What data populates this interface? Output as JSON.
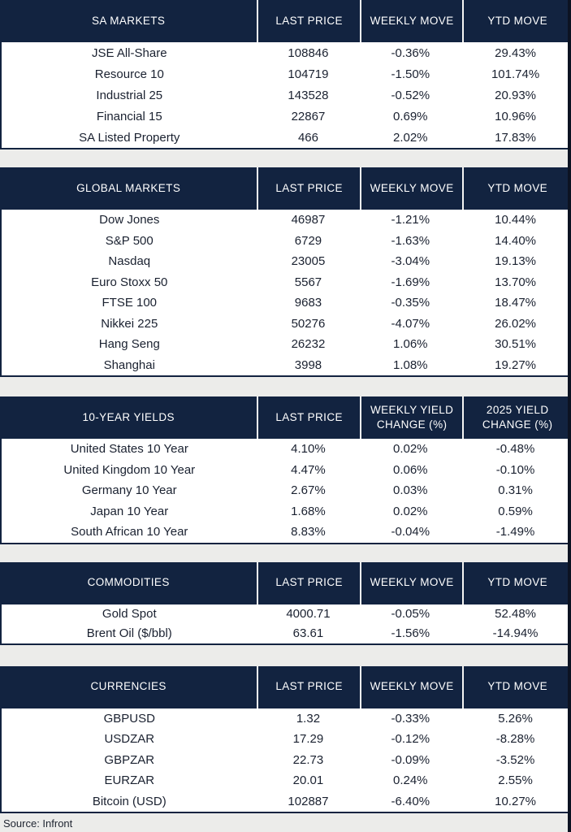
{
  "page": {
    "source_note": "Source: Infront"
  },
  "colors": {
    "header_bg": "#122340",
    "header_text": "#ffffff",
    "page_bg": "#ececea",
    "body_bg": "#ffffff",
    "body_text": "#1a2130",
    "border": "#122340",
    "edge_band": "#0c1322"
  },
  "chart_data": [
    {
      "type": "table",
      "name": "sa-markets",
      "title": "SA MARKETS",
      "columns": [
        "SA MARKETS",
        "LAST PRICE",
        "WEEKLY MOVE",
        "YTD MOVE"
      ],
      "rows": [
        [
          "JSE All-Share",
          "108846",
          "-0.36%",
          "29.43%"
        ],
        [
          "Resource 10",
          "104719",
          "-1.50%",
          "101.74%"
        ],
        [
          "Industrial 25",
          "143528",
          "-0.52%",
          "20.93%"
        ],
        [
          "Financial 15",
          "22867",
          "0.69%",
          "10.96%"
        ],
        [
          "SA Listed Property",
          "466",
          "2.02%",
          "17.83%"
        ]
      ]
    },
    {
      "type": "table",
      "name": "global-markets",
      "title": "GLOBAL MARKETS",
      "columns": [
        "GLOBAL MARKETS",
        "LAST PRICE",
        "WEEKLY MOVE",
        "YTD MOVE"
      ],
      "rows": [
        [
          "Dow Jones",
          "46987",
          "-1.21%",
          "10.44%"
        ],
        [
          "S&P 500",
          "6729",
          "-1.63%",
          "14.40%"
        ],
        [
          "Nasdaq",
          "23005",
          "-3.04%",
          "19.13%"
        ],
        [
          "Euro Stoxx 50",
          "5567",
          "-1.69%",
          "13.70%"
        ],
        [
          "FTSE 100",
          "9683",
          "-0.35%",
          "18.47%"
        ],
        [
          "Nikkei 225",
          "50276",
          "-4.07%",
          "26.02%"
        ],
        [
          "Hang Seng",
          "26232",
          "1.06%",
          "30.51%"
        ],
        [
          "Shanghai",
          "3998",
          "1.08%",
          "19.27%"
        ]
      ]
    },
    {
      "type": "table",
      "name": "ten-year-yields",
      "title": "10-YEAR YIELDS",
      "columns": [
        "10-YEAR YIELDS",
        "LAST PRICE",
        "WEEKLY YIELD CHANGE (%)",
        "2025 YIELD CHANGE (%)"
      ],
      "rows": [
        [
          "United States 10 Year",
          "4.10%",
          "0.02%",
          "-0.48%"
        ],
        [
          "United Kingdom 10 Year",
          "4.47%",
          "0.06%",
          "-0.10%"
        ],
        [
          "Germany 10 Year",
          "2.67%",
          "0.03%",
          "0.31%"
        ],
        [
          "Japan 10 Year",
          "1.68%",
          "0.02%",
          "0.59%"
        ],
        [
          "South African 10 Year",
          "8.83%",
          "-0.04%",
          "-1.49%"
        ]
      ]
    },
    {
      "type": "table",
      "name": "commodities",
      "title": "COMMODITIES",
      "columns": [
        "COMMODITIES",
        "LAST PRICE",
        "WEEKLY MOVE",
        "YTD MOVE"
      ],
      "rows": [
        [
          "Gold Spot",
          "4000.71",
          "-0.05%",
          "52.48%"
        ],
        [
          "Brent Oil ($/bbl)",
          "63.61",
          "-1.56%",
          "-14.94%"
        ]
      ]
    },
    {
      "type": "table",
      "name": "currencies",
      "title": "CURRENCIES",
      "columns": [
        "CURRENCIES",
        "LAST PRICE",
        "WEEKLY MOVE",
        "YTD MOVE"
      ],
      "rows": [
        [
          "GBPUSD",
          "1.32",
          "-0.33%",
          "5.26%"
        ],
        [
          "USDZAR",
          "17.29",
          "-0.12%",
          "-8.28%"
        ],
        [
          "GBPZAR",
          "22.73",
          "-0.09%",
          "-3.52%"
        ],
        [
          "EURZAR",
          "20.01",
          "0.24%",
          "2.55%"
        ],
        [
          "Bitcoin (USD)",
          "102887",
          "-6.40%",
          "10.27%"
        ]
      ]
    }
  ]
}
